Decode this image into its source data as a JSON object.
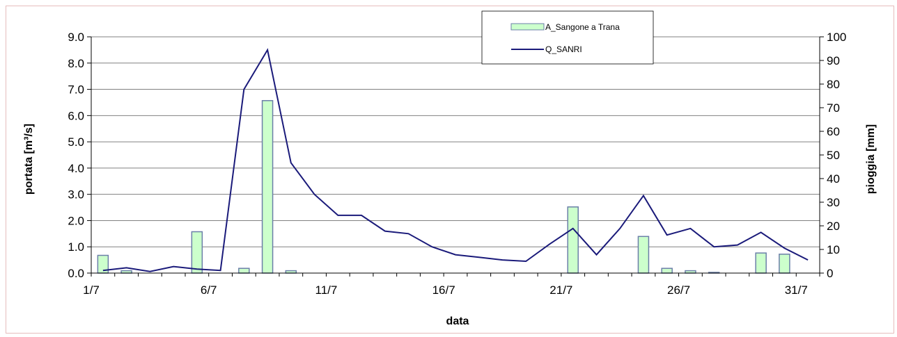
{
  "chart_data": {
    "type": "bar+line",
    "title": "",
    "xlabel": "data",
    "ylabel_left": "portata [m³/s]",
    "ylabel_right": "pioggia [mm]",
    "ylim_left": [
      0,
      9
    ],
    "ylim_right": [
      0,
      100
    ],
    "yticks_left": [
      "0.0",
      "1.0",
      "2.0",
      "3.0",
      "4.0",
      "5.0",
      "6.0",
      "7.0",
      "8.0",
      "9.0"
    ],
    "yticks_right": [
      "0",
      "10",
      "20",
      "30",
      "40",
      "50",
      "60",
      "70",
      "80",
      "90",
      "100"
    ],
    "xticks": [
      {
        "day": 1,
        "label": "1/7"
      },
      {
        "day": 6,
        "label": "6/7"
      },
      {
        "day": 11,
        "label": "11/7"
      },
      {
        "day": 16,
        "label": "16/7"
      },
      {
        "day": 21,
        "label": "21/7"
      },
      {
        "day": 26,
        "label": "26/7"
      },
      {
        "day": 31,
        "label": "31/7"
      }
    ],
    "grid": true,
    "legend_position": "top-right",
    "series": [
      {
        "name": "A_Sangone a Trana",
        "kind": "bar",
        "axis": "right",
        "color": "#ccffcc",
        "edge": "#6b7fa8",
        "days": [
          1,
          2,
          3,
          4,
          5,
          6,
          7,
          8,
          9,
          10,
          11,
          12,
          13,
          14,
          15,
          16,
          17,
          18,
          19,
          20,
          21,
          22,
          23,
          24,
          25,
          26,
          27,
          28,
          29,
          30,
          31
        ],
        "values": [
          7.5,
          1,
          0,
          0,
          17.5,
          0,
          2,
          73,
          1,
          0,
          0,
          0,
          0,
          0,
          0,
          0,
          0,
          0,
          0,
          0,
          28,
          0,
          0,
          15.5,
          2,
          1,
          0.3,
          0,
          8.5,
          8,
          0
        ]
      },
      {
        "name": "Q_SANRI",
        "kind": "line",
        "axis": "left",
        "color": "#1a1a7a",
        "days": [
          1,
          2,
          3,
          4,
          5,
          6,
          7,
          8,
          9,
          10,
          11,
          12,
          13,
          14,
          15,
          16,
          17,
          18,
          19,
          20,
          21,
          22,
          23,
          24,
          25,
          26,
          27,
          28,
          29,
          30,
          31
        ],
        "values": [
          0.1,
          0.2,
          0.06,
          0.25,
          0.15,
          0.1,
          7.0,
          8.5,
          4.2,
          3.0,
          2.2,
          2.2,
          1.6,
          1.5,
          1.0,
          0.7,
          0.6,
          0.5,
          0.45,
          1.1,
          1.7,
          0.7,
          1.7,
          2.95,
          1.45,
          1.7,
          1.0,
          1.07,
          1.55,
          0.95,
          0.5
        ]
      }
    ]
  }
}
